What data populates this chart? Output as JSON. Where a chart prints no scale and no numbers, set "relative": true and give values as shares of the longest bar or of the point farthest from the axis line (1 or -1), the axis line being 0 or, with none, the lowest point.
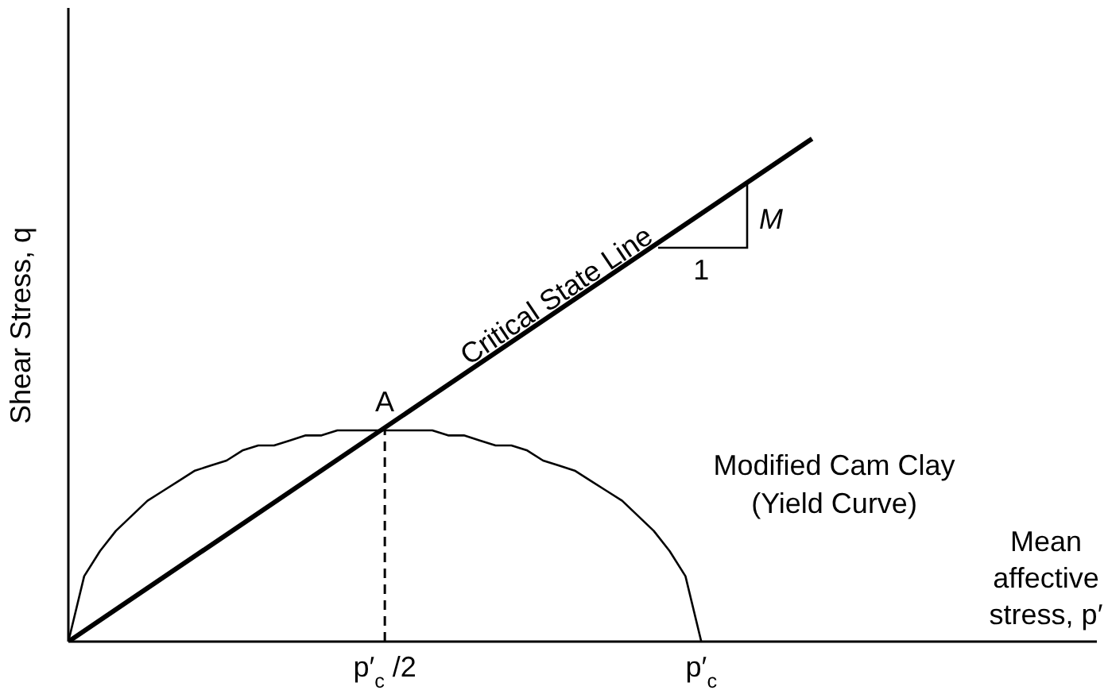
{
  "chart_data": {
    "type": "line",
    "relative": true,
    "xlabel": "Mean affective stress, p′",
    "ylabel": "Shear Stress, q",
    "categories": [
      null,
      null,
      null,
      null,
      null,
      null,
      null,
      null,
      null,
      null,
      null,
      null,
      null,
      null,
      null,
      null,
      null,
      null,
      null,
      null,
      "p′$_{c}$ /2",
      null,
      null,
      null,
      null,
      null,
      null,
      null,
      null,
      null,
      null,
      null,
      null,
      null,
      null,
      null,
      null,
      null,
      null,
      null,
      "p′$_{c}$",
      null,
      null,
      null,
      null,
      null,
      null,
      null,
      null,
      null,
      null,
      null,
      null,
      null,
      null,
      null,
      null,
      null,
      null,
      null,
      null,
      null,
      null,
      null,
      null,
      null
    ],
    "series": [
      {
        "name": "Critical State Line",
        "color": "#000000",
        "values": [
          0,
          null,
          null,
          null,
          null,
          null,
          null,
          null,
          null,
          null,
          null,
          null,
          null,
          null,
          null,
          null,
          null,
          null,
          null,
          null,
          null,
          null,
          null,
          null,
          null,
          null,
          null,
          null,
          null,
          null,
          null,
          null,
          null,
          null,
          null,
          null,
          null,
          null,
          null,
          null,
          null,
          null,
          null,
          null,
          null,
          null,
          null,
          1,
          null,
          null,
          null,
          null,
          null,
          null,
          null,
          null,
          null,
          null,
          null,
          null,
          null,
          null,
          null,
          null,
          null,
          null
        ]
      },
      {
        "name": "Modified Cam Clay (Yield Curve)",
        "color": "#000000",
        "values": [
          0,
          0.13,
          0.18,
          0.22,
          0.25,
          0.28,
          0.3,
          0.32,
          0.34,
          0.35,
          0.36,
          0.38,
          0.39,
          0.39,
          0.4,
          0.41,
          0.41,
          0.42,
          0.42,
          0.42,
          0.42,
          0.42,
          0.42,
          0.42,
          0.41,
          0.41,
          0.4,
          0.39,
          0.39,
          0.38,
          0.36,
          0.35,
          0.34,
          0.32,
          0.3,
          0.28,
          0.25,
          0.22,
          0.18,
          0.13,
          0,
          null,
          null,
          null,
          null,
          null,
          null,
          null,
          null,
          null,
          null,
          null,
          null,
          null,
          null,
          null,
          null,
          null,
          null,
          null,
          null,
          null,
          null,
          null,
          null,
          null
        ]
      }
    ],
    "ref_lines": [
      {
        "axis": "x",
        "value": "p′$_{c}$ /2",
        "color": "#000000",
        "line_style": "dashed"
      }
    ],
    "annotations": [
      {
        "text": "A",
        "x": "p′$_{c}$ /2",
        "y": 0.42
      },
      "M",
      "1"
    ],
    "grid": false,
    "legend": false,
    "marker": "none",
    "line_style": "solid"
  }
}
